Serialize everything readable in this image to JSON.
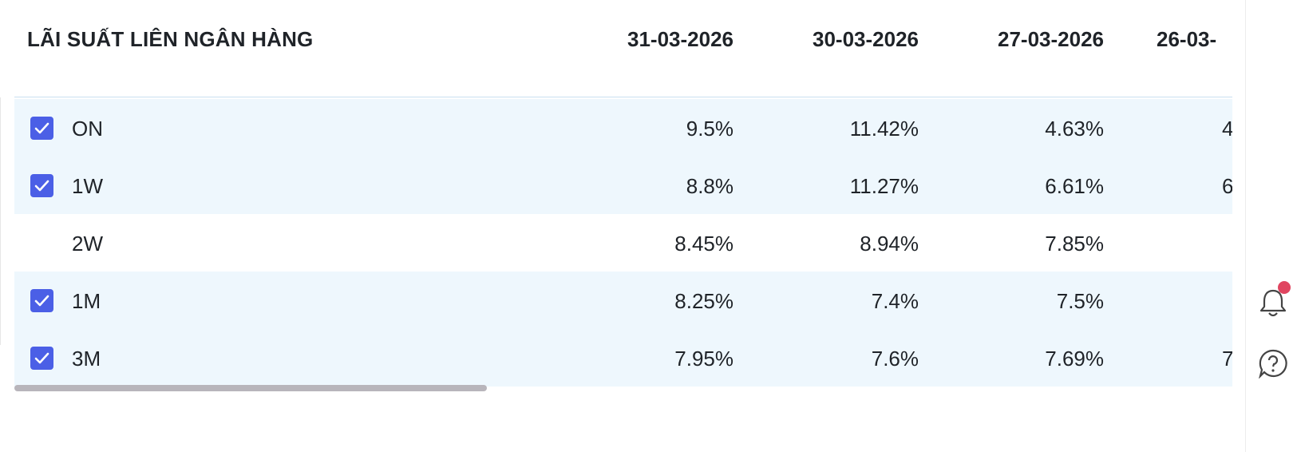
{
  "table": {
    "title": "LÃI SUẤT LIÊN NGÂN HÀNG",
    "columns": [
      "31-03-2026",
      "30-03-2026",
      "27-03-2026",
      "26-03-"
    ],
    "rows": [
      {
        "label": "ON",
        "checked": true,
        "cells": [
          "9.5%",
          "11.42%",
          "4.63%",
          "4"
        ]
      },
      {
        "label": "1W",
        "checked": true,
        "cells": [
          "8.8%",
          "11.27%",
          "6.61%",
          "6"
        ]
      },
      {
        "label": "2W",
        "checked": false,
        "cells": [
          "8.45%",
          "8.94%",
          "7.85%",
          null
        ]
      },
      {
        "label": "1M",
        "checked": true,
        "cells": [
          "8.25%",
          "7.4%",
          "7.5%",
          null
        ]
      },
      {
        "label": "3M",
        "checked": true,
        "cells": [
          "7.95%",
          "7.6%",
          "7.69%",
          "7"
        ]
      }
    ]
  }
}
